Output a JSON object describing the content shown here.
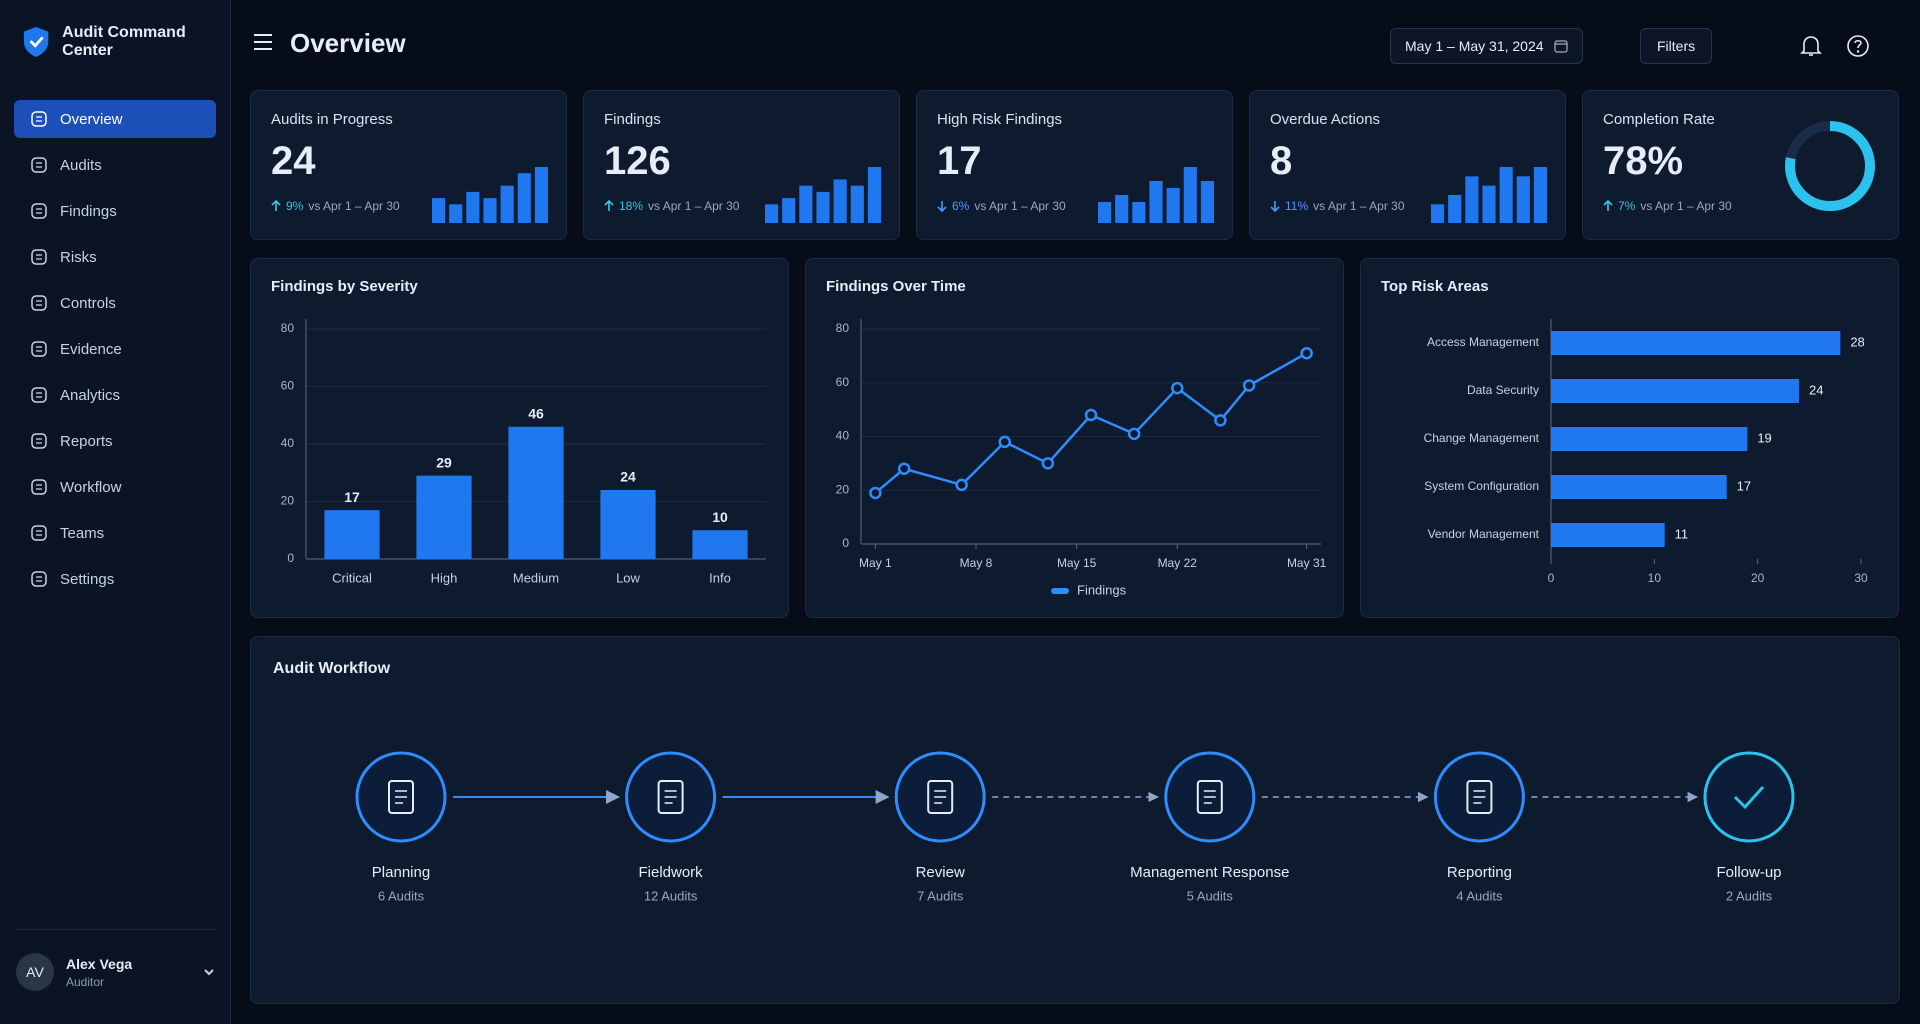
{
  "app": {
    "title": "Audit Command Center"
  },
  "sidebar": {
    "nav": [
      "Overview",
      "Audits",
      "Findings",
      "Risks",
      "Controls",
      "Evidence",
      "Analytics",
      "Reports",
      "Workflow",
      "Teams",
      "Settings"
    ],
    "active": 0,
    "user": {
      "initials": "AV",
      "name": "Alex Vega",
      "role": "Auditor"
    }
  },
  "header": {
    "title": "Overview",
    "date_range": "May 1 – May 31, 2024",
    "filters": "Filters"
  },
  "kpis": [
    {
      "label": "Audits in Progress",
      "value": 24,
      "change": "9%",
      "direction": "up",
      "comparison": "vs Apr 1 – Apr 30",
      "spark": [
        4,
        3,
        5,
        4,
        6,
        8,
        9
      ]
    },
    {
      "label": "Findings",
      "value": 126,
      "change": "18%",
      "direction": "up",
      "comparison": "vs Apr 1 – Apr 30",
      "spark": [
        3,
        4,
        6,
        5,
        7,
        6,
        9
      ]
    },
    {
      "label": "High Risk Findings",
      "value": 17,
      "change": "6%",
      "direction": "down",
      "comparison": "vs Apr 1 – Apr 30",
      "spark": [
        3,
        4,
        3,
        6,
        5,
        8,
        6
      ]
    },
    {
      "label": "Overdue Actions",
      "value": 8,
      "change": "11%",
      "direction": "down",
      "comparison": "vs Apr 1 – Apr 30",
      "spark": [
        2,
        3,
        5,
        4,
        6,
        5,
        6
      ]
    },
    {
      "label": "Completion Rate",
      "value": 78,
      "value_label": "78%",
      "change": "7%",
      "direction": "up",
      "comparison": "vs Apr 1 – Apr 30"
    }
  ],
  "chart_data": [
    {
      "type": "bar",
      "title": "Findings by Severity",
      "categories": [
        "Critical",
        "High",
        "Medium",
        "Low",
        "Info"
      ],
      "values": [
        17,
        29,
        46,
        24,
        10
      ],
      "color": "#1f78f0",
      "ylim": [
        0,
        80
      ],
      "yticks": [
        0,
        20,
        40,
        60,
        80
      ],
      "grid": true
    },
    {
      "type": "line",
      "title": "Findings Over Time",
      "x": [
        1,
        3,
        7,
        10,
        13,
        16,
        19,
        22,
        25,
        27,
        31
      ],
      "series": [
        {
          "name": "Findings",
          "color": "#2f8cff",
          "values": [
            19,
            28,
            22,
            38,
            30,
            48,
            41,
            58,
            46,
            59,
            71
          ]
        }
      ],
      "xlim": [
        0,
        32
      ],
      "xticks": [
        {
          "value": 1,
          "label": "May 1"
        },
        {
          "value": 8,
          "label": "May 8"
        },
        {
          "value": 15,
          "label": "May 15"
        },
        {
          "value": 22,
          "label": "May 22"
        },
        {
          "value": 31,
          "label": "May 31"
        }
      ],
      "ylim": [
        0,
        80
      ],
      "yticks": [
        0,
        20,
        40,
        60,
        80
      ],
      "grid": true
    },
    {
      "type": "hbar",
      "title": "Top Risk Areas",
      "categories": [
        "Access Management",
        "Data Security",
        "Change Management",
        "System Configuration",
        "Vendor Management"
      ],
      "values": [
        28,
        24,
        19,
        17,
        11
      ],
      "color": "#1f78f0",
      "xlim": [
        0,
        30
      ],
      "xticks": [
        0,
        10,
        20,
        30
      ]
    }
  ],
  "workflow": {
    "title": "Audit Workflow",
    "stages": [
      {
        "label": "Planning",
        "count": "6 Audits"
      },
      {
        "label": "Fieldwork",
        "count": "12 Audits"
      },
      {
        "label": "Review",
        "count": "7 Audits"
      },
      {
        "label": "Management Response",
        "count": "5 Audits"
      },
      {
        "label": "Reporting",
        "count": "4 Audits"
      },
      {
        "label": "Follow-up",
        "count": "2 Audits"
      }
    ]
  }
}
